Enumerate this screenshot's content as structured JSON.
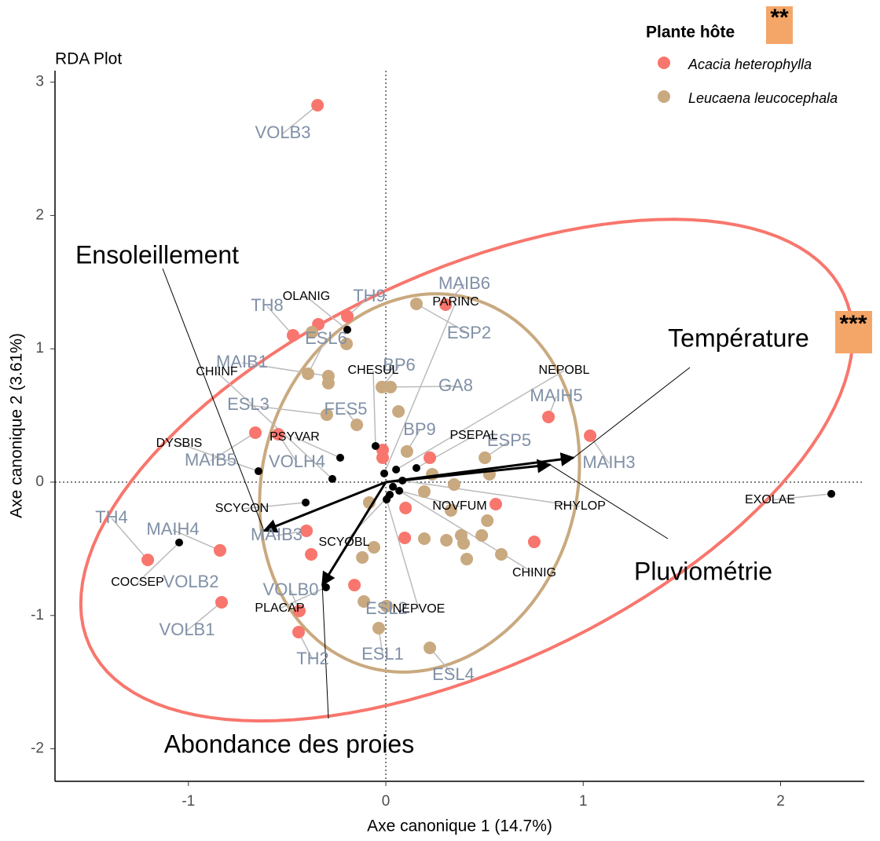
{
  "chart_data": {
    "type": "scatter",
    "title": "RDA Plot",
    "x_label": "Axe canonique 1 (14.7%)",
    "y_label": "Axe canonique 2 (3.61%)",
    "xlim": [
      -1.676,
      2.424
    ],
    "ylim": [
      -2.244,
      3.086
    ],
    "xticks": [
      -1,
      0,
      1,
      2
    ],
    "yticks": [
      -2,
      -1,
      0,
      1,
      2,
      3
    ],
    "legend_title": "Plante hôte",
    "legend_annotation": "**",
    "legend_position": "top-right",
    "series": [
      {
        "name": "Acacia heterophylla",
        "color": "#f8766d",
        "x": [
          -0.346,
          -0.47,
          -0.342,
          -0.195,
          0.303,
          0.824,
          1.035,
          -0.661,
          -0.545,
          -0.016,
          -0.016,
          0.223,
          0.1,
          0.557,
          0.096,
          0.752,
          -0.402,
          -0.378,
          -1.206,
          -0.84,
          -0.832,
          -0.159,
          -0.438,
          -0.442
        ],
        "values": [
          2.827,
          1.101,
          1.184,
          1.243,
          1.331,
          0.489,
          0.348,
          0.371,
          0.359,
          0.241,
          0.183,
          0.183,
          -0.194,
          -0.165,
          -0.418,
          -0.448,
          -0.365,
          -0.542,
          -0.583,
          -0.512,
          -0.901,
          -0.772,
          -0.966,
          -1.125
        ],
        "labels": [
          "VOLB3",
          "TH8",
          null,
          "TH9",
          "MAIB6",
          "MAIH5",
          "MAIH3",
          "MAIB5",
          "VOLH4",
          null,
          null,
          null,
          null,
          null,
          null,
          null,
          "MAIB3",
          "VOLB2",
          "TH4",
          "MAIH4",
          "VOLB1",
          null,
          "VOLB0",
          "TH2"
        ],
        "ellipse": {
          "center": [
            0.41,
            0.09
          ],
          "axis1": [
            1.91,
            1.32
          ],
          "axis2": [
            0.42,
            -1.34
          ]
        }
      },
      {
        "name": "Leucaena leucocephala",
        "color": "#c9a97f",
        "x": [
          0.155,
          -0.374,
          -0.199,
          -0.394,
          -0.291,
          -0.291,
          -0.02,
          0.024,
          -0.299,
          0.064,
          -0.147,
          0.107,
          0.502,
          0.525,
          0.235,
          0.346,
          -0.084,
          0.195,
          0.33,
          0.514,
          0.195,
          0.307,
          0.382,
          0.394,
          0.486,
          0.41,
          0.585,
          -0.119,
          -0.06,
          -0.111,
          0.004,
          -0.036,
          0.223
        ],
        "values": [
          1.337,
          1.125,
          1.037,
          0.813,
          0.795,
          0.742,
          0.713,
          0.713,
          0.506,
          0.53,
          0.43,
          0.23,
          0.183,
          0.059,
          0.059,
          -0.018,
          -0.153,
          -0.071,
          -0.212,
          -0.289,
          -0.424,
          -0.436,
          -0.4,
          -0.459,
          -0.4,
          -0.577,
          -0.542,
          -0.565,
          -0.489,
          -0.895,
          -0.93,
          -1.095,
          -1.243
        ],
        "labels": [
          "ESP2",
          null,
          null,
          "ESL6",
          "MAIB1",
          null,
          "BP6",
          "GA8",
          "ESL3",
          null,
          "FES5",
          "BP9",
          "ESP5",
          null,
          null,
          null,
          null,
          null,
          null,
          null,
          null,
          null,
          null,
          null,
          null,
          null,
          null,
          null,
          null,
          null,
          "ESL2",
          "ESL1",
          "ESL4"
        ],
        "ellipse": {
          "center": [
            0.171,
            -0.006
          ],
          "axis1": [
            0.259,
            1.384
          ],
          "axis2": [
            0.768,
            -0.312
          ]
        }
      }
    ],
    "species": {
      "color": "#000000",
      "x": [
        -0.195,
        -0.271,
        -0.645,
        -0.231,
        -0.052,
        -0.008,
        0.052,
        0.155,
        -0.406,
        0.02,
        0.068,
        0.084,
        0.036,
        0.004,
        -0.303,
        -1.047,
        2.257
      ],
      "values": [
        1.143,
        0.024,
        0.082,
        0.183,
        0.271,
        0.065,
        0.094,
        0.106,
        -0.153,
        -0.094,
        -0.065,
        0.012,
        -0.035,
        -0.13,
        -0.789,
        -0.453,
        -0.088
      ],
      "labels": [
        "OLANIG",
        "CHIINF",
        "DYSBIS",
        "PSYVAR",
        "CHESUL",
        "PARINC",
        "NEPOBL",
        "PSEPAL",
        "SCYCON",
        "SCYOBL",
        "NOVFUM",
        "RHYLOP",
        "CHINIG",
        "NEPVOE",
        "PLACAP",
        "COCSEP",
        "EXOLAE"
      ]
    },
    "arrows": {
      "labels": [
        "Ensoleillement",
        "Température",
        "Pluviométrie",
        "Abondance des proies"
      ],
      "x": [
        -0.617,
        0.951,
        0.832,
        -0.322
      ],
      "values": [
        -0.365,
        0.183,
        0.13,
        -0.772
      ],
      "annotations": [
        null,
        "***",
        null,
        null
      ]
    }
  }
}
